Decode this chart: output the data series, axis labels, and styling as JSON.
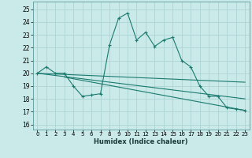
{
  "xlabel": "Humidex (Indice chaleur)",
  "background_color": "#caeaea",
  "grid_color": "#aed4d4",
  "line_color": "#1a7a6e",
  "xlim": [
    -0.5,
    23.5
  ],
  "ylim": [
    15.6,
    25.6
  ],
  "yticks": [
    16,
    17,
    18,
    19,
    20,
    21,
    22,
    23,
    24,
    25
  ],
  "xticks": [
    0,
    1,
    2,
    3,
    4,
    5,
    6,
    7,
    8,
    9,
    10,
    11,
    12,
    13,
    14,
    15,
    16,
    17,
    18,
    19,
    20,
    21,
    22,
    23
  ],
  "series1_x": [
    0,
    1,
    2,
    3,
    4,
    5,
    6,
    7,
    8,
    9,
    10,
    11,
    12,
    13,
    14,
    15,
    16,
    17,
    18,
    19,
    20,
    21,
    22,
    23
  ],
  "series1_y": [
    20.0,
    20.5,
    20.0,
    20.0,
    19.0,
    18.2,
    18.3,
    18.4,
    22.2,
    24.3,
    24.7,
    22.6,
    23.2,
    22.1,
    22.6,
    22.8,
    21.0,
    20.5,
    19.0,
    18.2,
    18.2,
    17.3,
    17.2,
    17.1
  ],
  "series2_x": [
    0,
    23
  ],
  "series2_y": [
    20.0,
    19.3
  ],
  "series3_x": [
    0,
    23
  ],
  "series3_y": [
    20.0,
    18.0
  ],
  "series4_x": [
    3,
    23
  ],
  "series4_y": [
    19.7,
    17.1
  ]
}
